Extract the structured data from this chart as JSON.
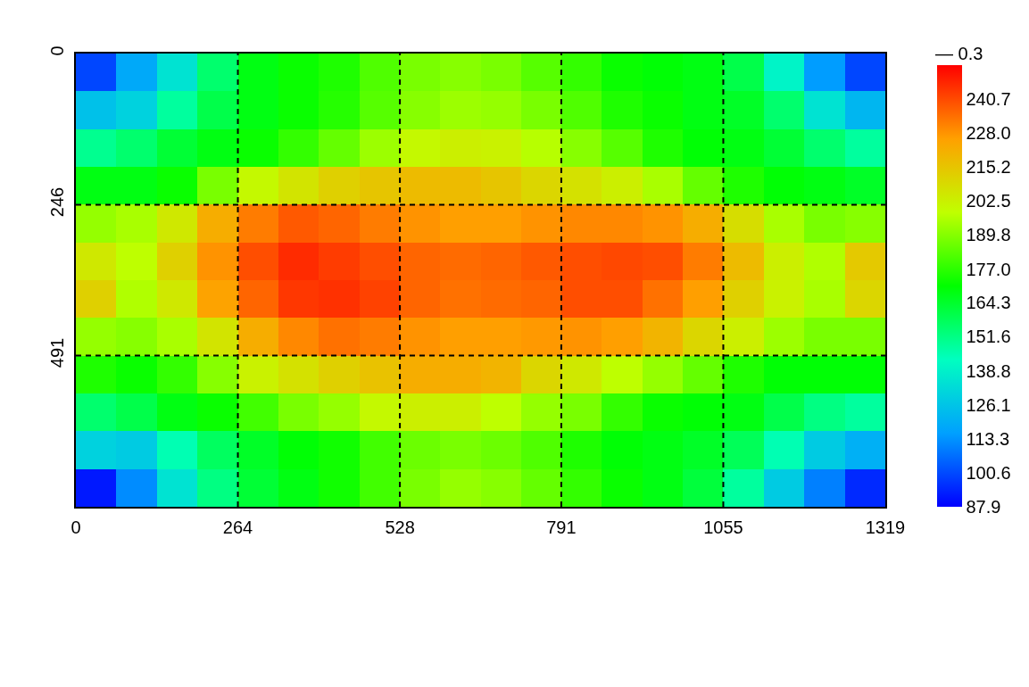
{
  "chart_data": {
    "type": "heatmap",
    "x": [
      33,
      99,
      165,
      231,
      297,
      363,
      429,
      495,
      561,
      627,
      692,
      758,
      824,
      890,
      956,
      1022,
      1088,
      1154,
      1220,
      1286
    ],
    "cells": [
      [
        100,
        118,
        135,
        155,
        168,
        172,
        175,
        182,
        188,
        190,
        188,
        183,
        178,
        172,
        170,
        168,
        160,
        140,
        115,
        100
      ],
      [
        125,
        130,
        148,
        160,
        168,
        172,
        176,
        183,
        190,
        193,
        192,
        188,
        182,
        175,
        172,
        168,
        165,
        155,
        135,
        122
      ],
      [
        150,
        155,
        163,
        168,
        172,
        178,
        185,
        193,
        200,
        203,
        202,
        197,
        190,
        183,
        175,
        170,
        168,
        163,
        155,
        148
      ],
      [
        168,
        168,
        172,
        188,
        200,
        206,
        212,
        215,
        218,
        218,
        215,
        210,
        207,
        203,
        195,
        185,
        175,
        170,
        168,
        165
      ],
      [
        192,
        195,
        205,
        222,
        232,
        238,
        236,
        232,
        228,
        226,
        226,
        228,
        230,
        230,
        228,
        222,
        208,
        195,
        188,
        190
      ],
      [
        205,
        198,
        212,
        228,
        240,
        246,
        243,
        240,
        236,
        235,
        236,
        238,
        240,
        241,
        240,
        232,
        218,
        203,
        196,
        214
      ],
      [
        212,
        196,
        205,
        225,
        236,
        244,
        245,
        242,
        236,
        234,
        235,
        236,
        240,
        240,
        234,
        226,
        212,
        202,
        195,
        210
      ],
      [
        192,
        190,
        195,
        206,
        222,
        230,
        234,
        232,
        228,
        226,
        226,
        227,
        228,
        226,
        220,
        210,
        203,
        193,
        188,
        188
      ],
      [
        175,
        172,
        178,
        190,
        202,
        207,
        212,
        216,
        222,
        222,
        220,
        210,
        205,
        198,
        192,
        185,
        175,
        170,
        170,
        170
      ],
      [
        155,
        160,
        168,
        172,
        180,
        188,
        192,
        200,
        203,
        203,
        198,
        192,
        188,
        178,
        172,
        170,
        168,
        160,
        152,
        148
      ],
      [
        130,
        128,
        145,
        157,
        165,
        170,
        173,
        180,
        186,
        188,
        186,
        182,
        175,
        170,
        168,
        165,
        158,
        145,
        128,
        120
      ],
      [
        92,
        112,
        135,
        152,
        163,
        168,
        173,
        180,
        188,
        192,
        190,
        185,
        178,
        172,
        168,
        162,
        148,
        128,
        110,
        95
      ]
    ],
    "colors": [
      "#0000ff",
      "#00a0ff",
      "#00ffc0",
      "#00ff00",
      "#c0ff00",
      "#ffa000",
      "#ff0000"
    ],
    "clim": [
      87.9,
      253.4
    ],
    "cticks": [
      87.9,
      100.6,
      113.3,
      126.1,
      138.8,
      151.6,
      164.3,
      {
        "value": 177,
        "label": "177.0"
      },
      189.8,
      202.5,
      215.2,
      {
        "value": 228,
        "label": "228.0"
      },
      240.7
    ],
    "xlim": [
      0,
      1319
    ],
    "xticks": [
      0,
      264,
      528,
      791,
      1055,
      1319
    ],
    "ylim": [
      737,
      0
    ],
    "yticks": [
      0,
      246,
      491
    ],
    "grid": true,
    "annotations": [
      "— 0.3"
    ]
  }
}
